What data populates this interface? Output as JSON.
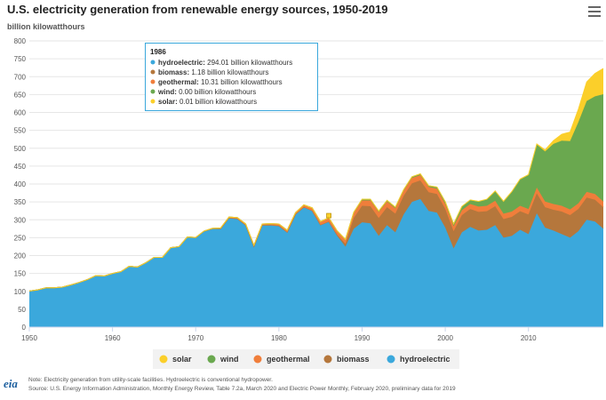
{
  "header": {
    "title": "U.S. electricity generation from renewable energy sources, 1950-2019",
    "units": "billion kilowatthours"
  },
  "toolbar": {
    "menu_icon": "hamburger-menu-icon"
  },
  "tooltip": {
    "year": "1986",
    "rows": [
      {
        "name": "hydroelectric:",
        "text": "294.01 billion kilowatthours",
        "color": "#3ba8dc"
      },
      {
        "name": "biomass:",
        "text": "1.18 billion kilowatthours",
        "color": "#b5773c"
      },
      {
        "name": "geothermal:",
        "text": "10.31 billion kilowatthours",
        "color": "#f07e3b"
      },
      {
        "name": "wind:",
        "text": "0.00 billion kilowatthours",
        "color": "#6aa84f"
      },
      {
        "name": "solar:",
        "text": "0.01 billion kilowatthours",
        "color": "#fbcf2a"
      }
    ]
  },
  "footer": {
    "note": "Note: Electricity generation from utility-scale facilities. Hydroelectric is conventional hydropower.",
    "source": "Source: U.S. Energy Information Administration, Monthly Energy Review, Table 7.2a, March 2020 and Electric Power Monthly, February 2020, preliminary data for 2019",
    "logo": "eia"
  },
  "chart_data": {
    "type": "area",
    "stacked": true,
    "x_start": 1950,
    "x": [
      1950,
      1951,
      1952,
      1953,
      1954,
      1955,
      1956,
      1957,
      1958,
      1959,
      1960,
      1961,
      1962,
      1963,
      1964,
      1965,
      1966,
      1967,
      1968,
      1969,
      1970,
      1971,
      1972,
      1973,
      1974,
      1975,
      1976,
      1977,
      1978,
      1979,
      1980,
      1981,
      1982,
      1983,
      1984,
      1985,
      1986,
      1987,
      1988,
      1989,
      1990,
      1991,
      1992,
      1993,
      1994,
      1995,
      1996,
      1997,
      1998,
      1999,
      2000,
      2001,
      2002,
      2003,
      2004,
      2005,
      2006,
      2007,
      2008,
      2009,
      2010,
      2011,
      2012,
      2013,
      2014,
      2015,
      2016,
      2017,
      2018,
      2019
    ],
    "xlim": [
      1950,
      2019
    ],
    "ylim": [
      0,
      800
    ],
    "yticks": [
      0,
      50,
      100,
      150,
      200,
      250,
      300,
      350,
      400,
      450,
      500,
      550,
      600,
      650,
      700,
      750,
      800
    ],
    "xticks": [
      1950,
      1960,
      1970,
      1980,
      1990,
      2000,
      2010
    ],
    "grid": true,
    "legend_position": "bottom",
    "series": [
      {
        "name": "hydroelectric",
        "color": "#3ba8dc",
        "values": [
          101,
          104,
          110,
          110,
          112,
          118,
          125,
          133,
          144,
          143,
          150,
          155,
          170,
          168,
          180,
          195,
          195,
          222,
          225,
          252,
          250,
          268,
          275,
          275,
          305,
          303,
          285,
          225,
          285,
          285,
          283,
          265,
          315,
          335,
          325,
          285,
          294,
          255,
          225,
          275,
          293,
          290,
          255,
          285,
          265,
          315,
          350,
          358,
          325,
          320,
          278,
          220,
          265,
          280,
          270,
          272,
          285,
          250,
          255,
          272,
          260,
          318,
          278,
          270,
          260,
          250,
          268,
          300,
          295,
          275
        ]
      },
      {
        "name": "biomass",
        "color": "#b5773c",
        "values": [
          0,
          0,
          0,
          0,
          0,
          0,
          0,
          0,
          0,
          0,
          0,
          0,
          0,
          0,
          0,
          0,
          0,
          0,
          0,
          0,
          0.1,
          0.1,
          0.1,
          0.1,
          0.1,
          0.1,
          0.2,
          0.2,
          0.2,
          0.3,
          0.3,
          0.3,
          0.4,
          0.5,
          0.6,
          0.8,
          1.18,
          3,
          8,
          30,
          46,
          48,
          50,
          50,
          52,
          52,
          52,
          52,
          52,
          52,
          52,
          48,
          48,
          50,
          52,
          52,
          53,
          52,
          53,
          52,
          55,
          56,
          57,
          58,
          63,
          63,
          62,
          62,
          61,
          60
        ]
      },
      {
        "name": "geothermal",
        "color": "#f07e3b",
        "values": [
          0,
          0,
          0,
          0,
          0,
          0,
          0,
          0,
          0,
          0,
          0,
          0,
          0,
          0,
          0,
          0,
          0,
          0,
          0,
          0,
          0.5,
          0.5,
          1,
          2,
          2.5,
          3,
          3.5,
          3.6,
          3,
          3.9,
          5,
          5.7,
          4.8,
          6.1,
          7.7,
          9.3,
          10.31,
          11,
          12,
          14,
          15,
          16,
          16,
          16,
          15,
          14,
          15,
          15,
          15,
          15,
          14,
          14,
          14,
          14,
          15,
          15,
          15,
          15,
          15,
          15,
          15,
          16,
          16,
          16,
          16,
          16,
          16,
          16,
          16,
          16
        ]
      },
      {
        "name": "wind",
        "color": "#6aa84f",
        "values": [
          0,
          0,
          0,
          0,
          0,
          0,
          0,
          0,
          0,
          0,
          0,
          0,
          0,
          0,
          0,
          0,
          0,
          0,
          0,
          0,
          0,
          0,
          0,
          0,
          0,
          0,
          0,
          0,
          0,
          0,
          0,
          0,
          0,
          0,
          0,
          0,
          0,
          0,
          0,
          2,
          3,
          3,
          3,
          3,
          3,
          3,
          3,
          3,
          3,
          4,
          6,
          6,
          10,
          11,
          14,
          18,
          27,
          34,
          55,
          74,
          95,
          120,
          140,
          168,
          182,
          191,
          227,
          254,
          273,
          300
        ]
      },
      {
        "name": "solar",
        "color": "#fbcf2a",
        "values": [
          0,
          0,
          0,
          0,
          0,
          0,
          0,
          0,
          0,
          0,
          0,
          0,
          0,
          0,
          0,
          0,
          0,
          0,
          0,
          0,
          0,
          0,
          0,
          0,
          0,
          0,
          0,
          0,
          0,
          0,
          0,
          0,
          0,
          0,
          0,
          0,
          0.01,
          0.01,
          0.3,
          0.3,
          0.4,
          0.5,
          0.4,
          0.5,
          0.5,
          0.5,
          0.5,
          0.5,
          0.5,
          0.5,
          0.5,
          0.5,
          0.5,
          0.5,
          0.6,
          0.6,
          0.5,
          0.6,
          0.9,
          0.9,
          1.2,
          1.8,
          4.3,
          9,
          18,
          25,
          36,
          53,
          64,
          72
        ]
      }
    ],
    "legend_order": [
      "solar",
      "wind",
      "geothermal",
      "biomass",
      "hydroelectric"
    ],
    "highlight_year": 1986
  }
}
